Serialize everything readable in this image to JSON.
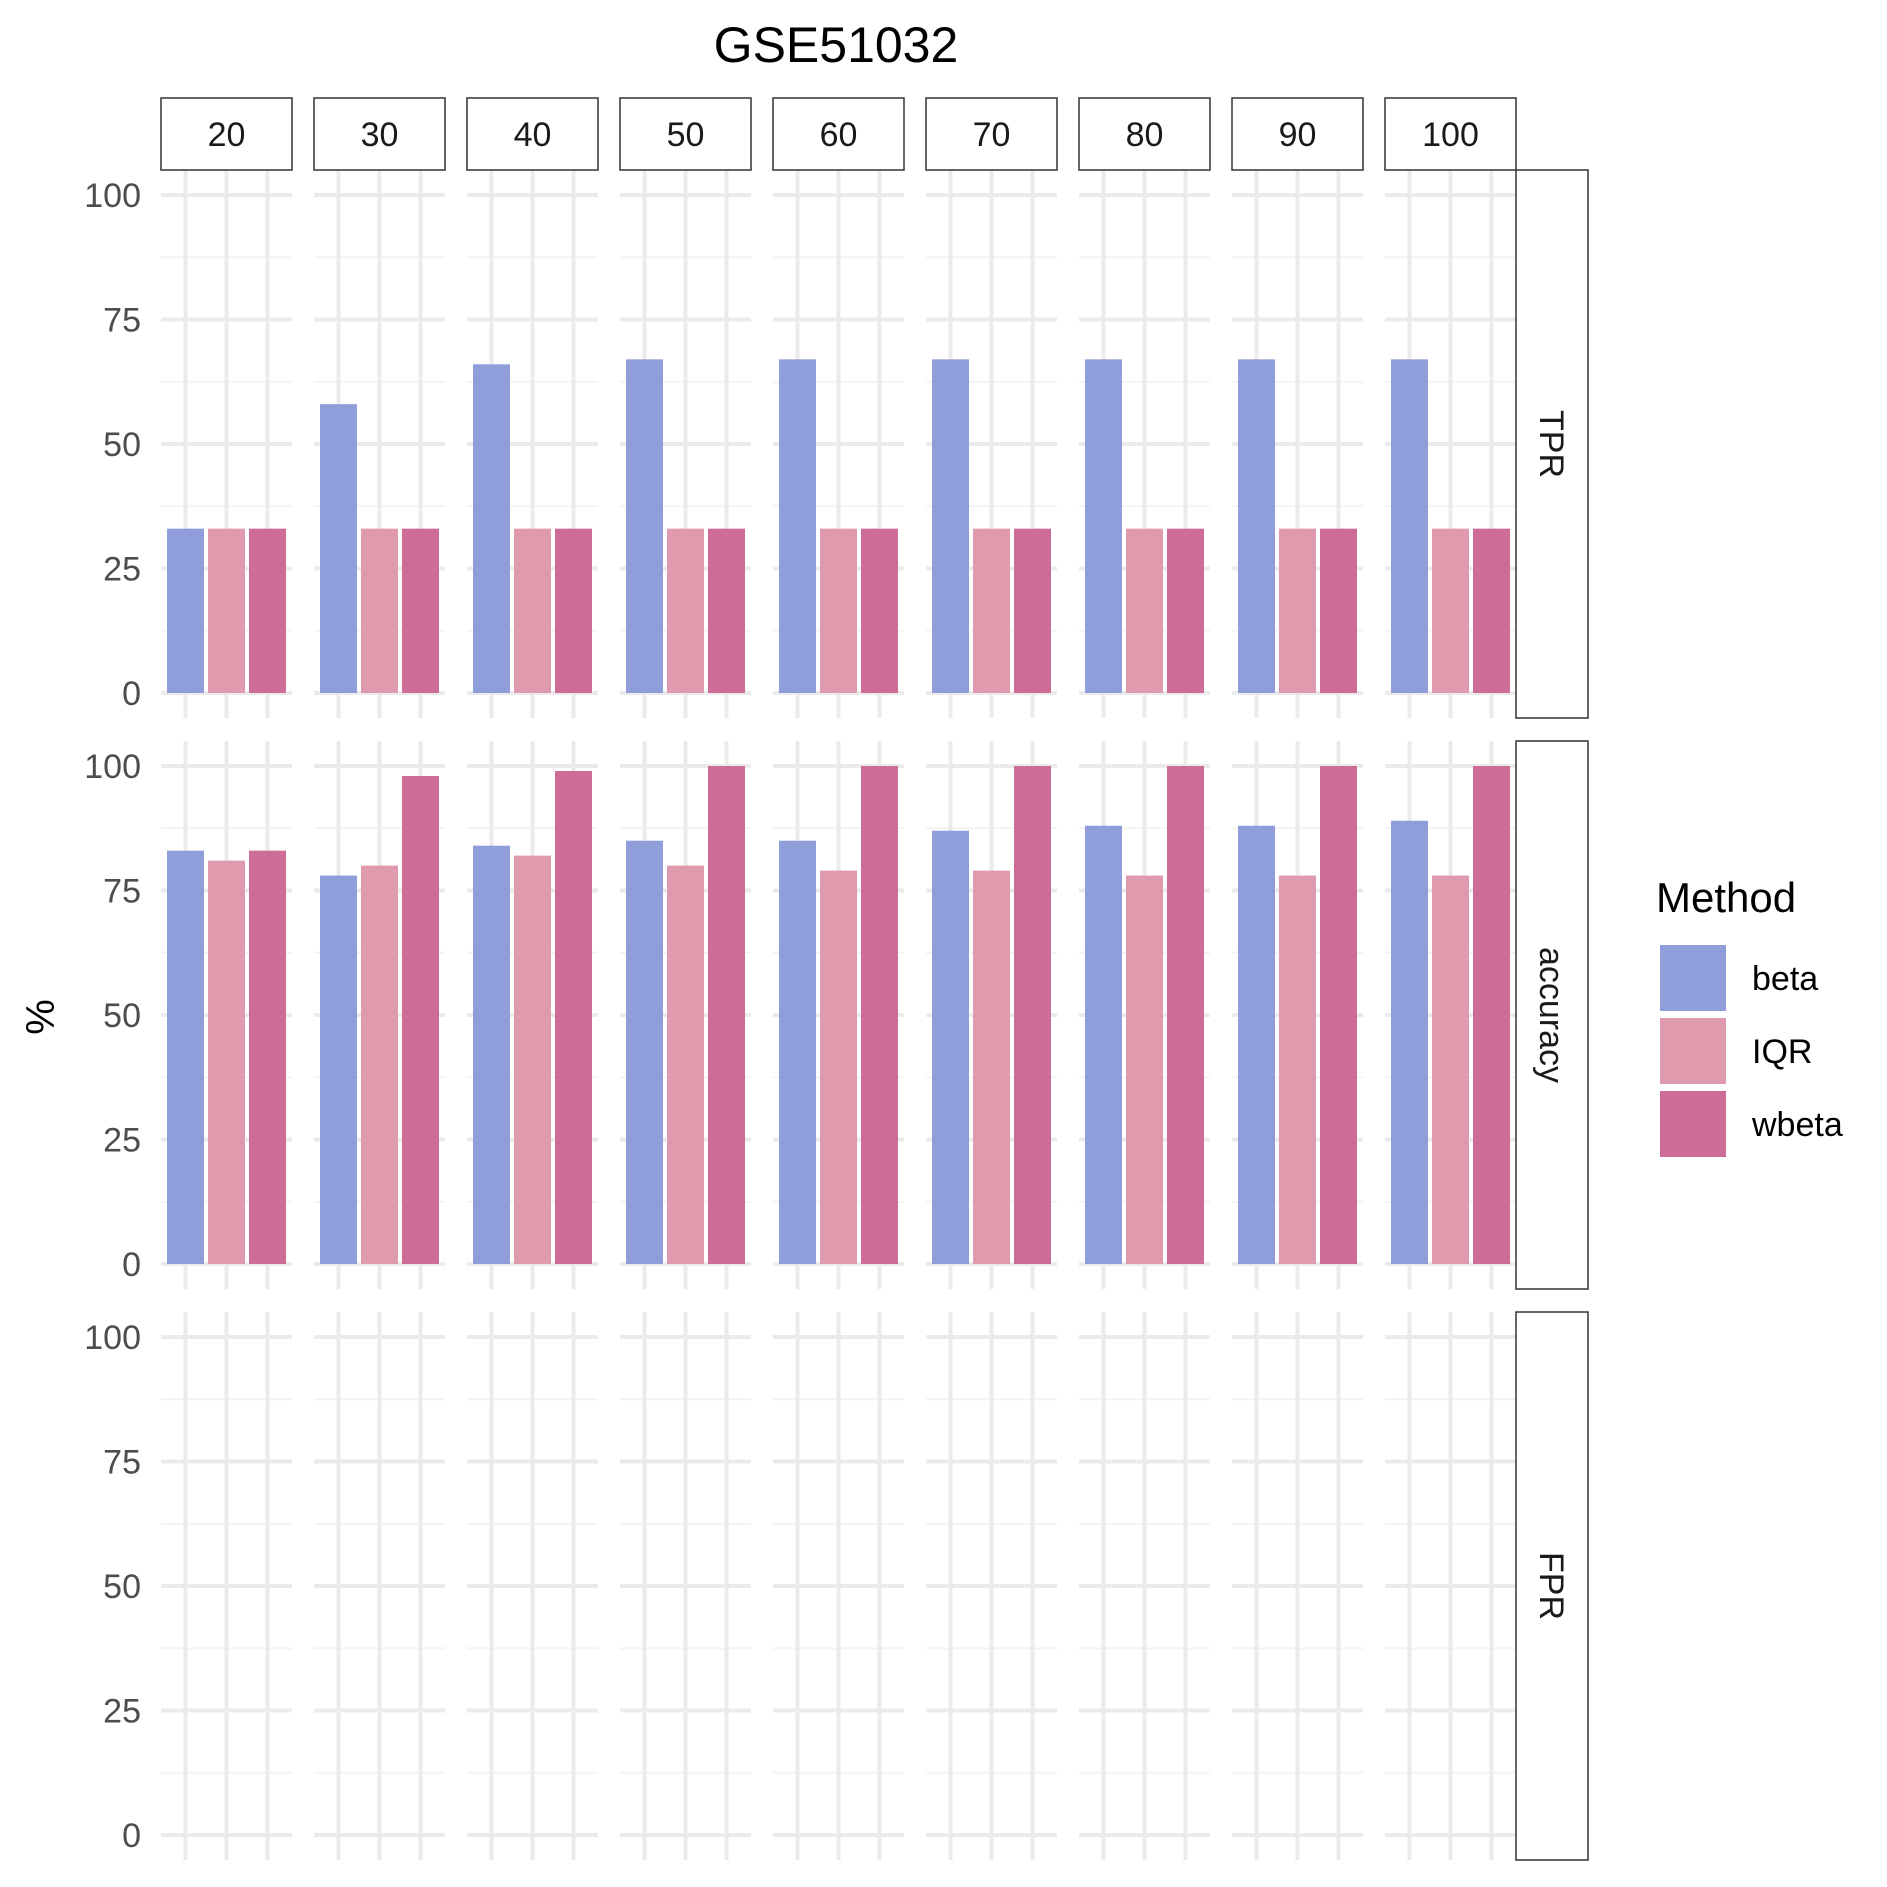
{
  "chart_data": {
    "type": "bar",
    "title": "GSE51032",
    "ylabel": "%",
    "xlabel": "",
    "ylim": [
      0,
      100
    ],
    "yticks": [
      0,
      25,
      50,
      75,
      100
    ],
    "grid": true,
    "legend": {
      "title": "Method",
      "position": "right",
      "entries": [
        "beta",
        "IQR",
        "wbeta"
      ]
    },
    "colors": {
      "beta": "#8f9ddb",
      "IQR": "#df9aad",
      "wbeta": "#cd6c96"
    },
    "column_facets": [
      "20",
      "30",
      "40",
      "50",
      "60",
      "70",
      "80",
      "90",
      "100"
    ],
    "row_facets": [
      "TPR",
      "accuracy",
      "FPR"
    ],
    "panels": [
      {
        "row": "TPR",
        "series": [
          {
            "name": "beta",
            "values": [
              33,
              58,
              66,
              67,
              67,
              67,
              67,
              67,
              67
            ]
          },
          {
            "name": "IQR",
            "values": [
              33,
              33,
              33,
              33,
              33,
              33,
              33,
              33,
              33
            ]
          },
          {
            "name": "wbeta",
            "values": [
              33,
              33,
              33,
              33,
              33,
              33,
              33,
              33,
              33
            ]
          }
        ]
      },
      {
        "row": "accuracy",
        "series": [
          {
            "name": "beta",
            "values": [
              83,
              78,
              84,
              85,
              85,
              87,
              88,
              88,
              89
            ]
          },
          {
            "name": "IQR",
            "values": [
              81,
              80,
              82,
              80,
              79,
              79,
              78,
              78,
              78
            ]
          },
          {
            "name": "wbeta",
            "values": [
              83,
              98,
              99,
              100,
              100,
              100,
              100,
              100,
              100
            ]
          }
        ]
      },
      {
        "row": "FPR",
        "series": [
          {
            "name": "beta",
            "values": [
              0,
              0,
              0,
              0,
              0,
              0,
              0,
              0,
              0
            ]
          },
          {
            "name": "IQR",
            "values": [
              0,
              0,
              0,
              0,
              0,
              0,
              0,
              0,
              0
            ]
          },
          {
            "name": "wbeta",
            "values": [
              0,
              0,
              0,
              0,
              0,
              0,
              0,
              0,
              0
            ]
          }
        ]
      }
    ]
  }
}
